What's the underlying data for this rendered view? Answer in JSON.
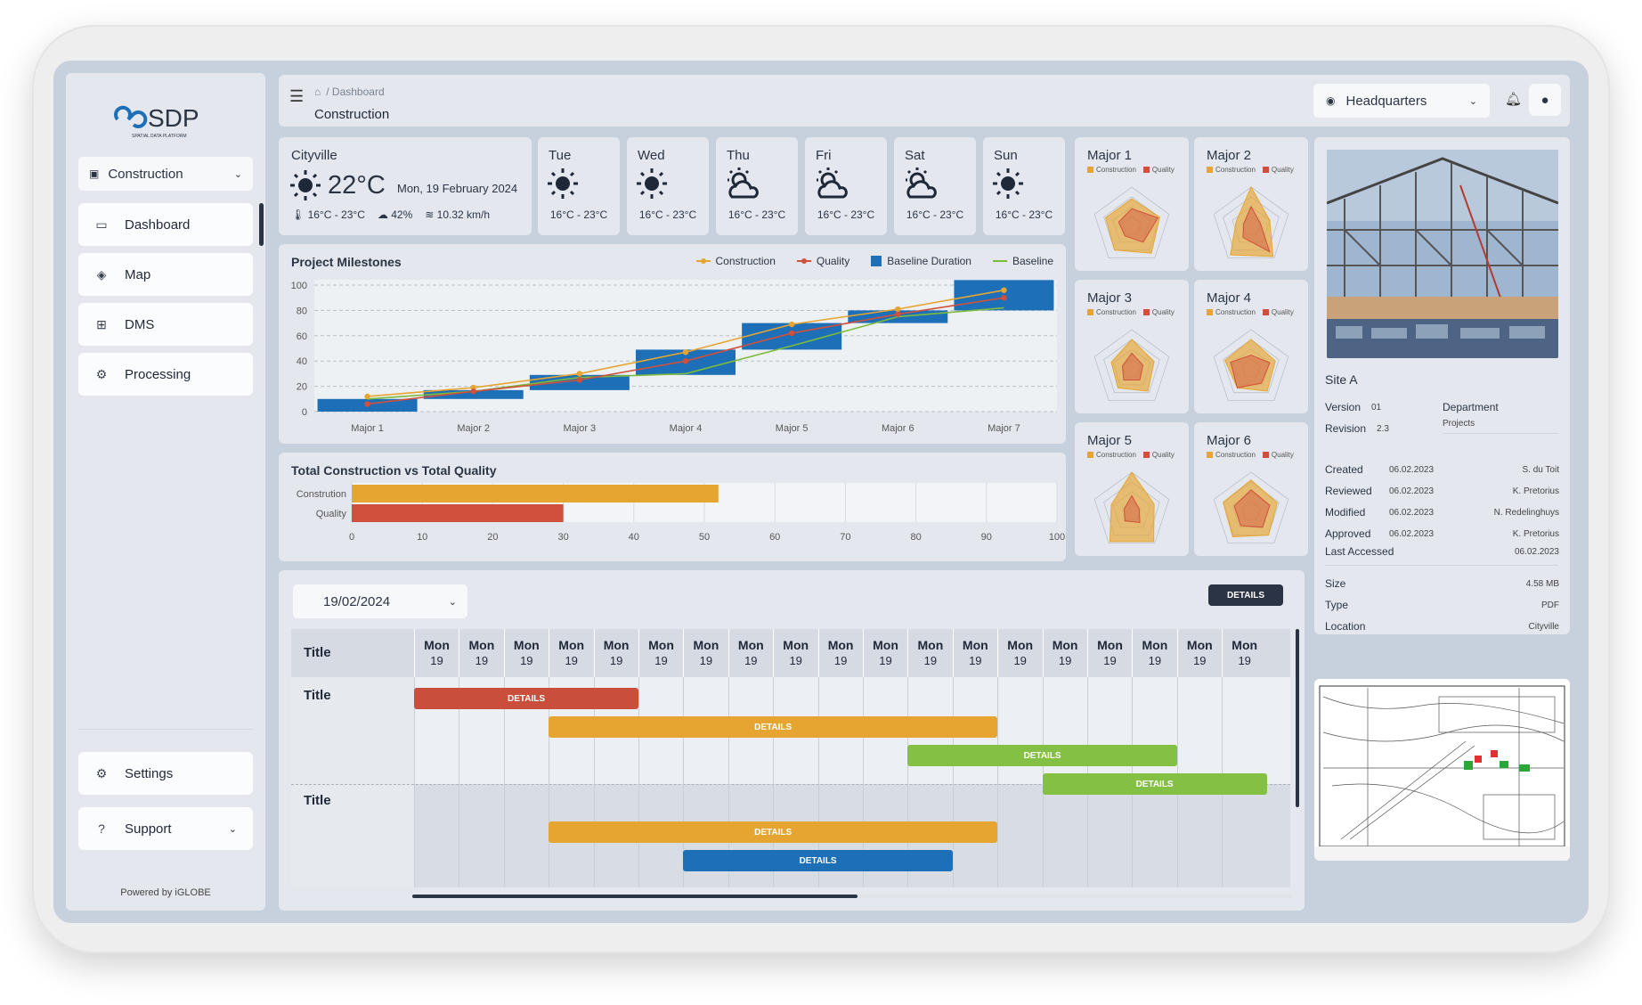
{
  "app": {
    "name": "SDP",
    "tagline": "SPATIAL DATA PLATFORM",
    "powered_by": "Powered by iGLOBE"
  },
  "sidebar": {
    "project_select": "Construction",
    "items": [
      {
        "label": "Dashboard",
        "active": true,
        "icon": "monitor-icon"
      },
      {
        "label": "Map",
        "icon": "map-icon"
      },
      {
        "label": "DMS",
        "icon": "sitemap-icon"
      },
      {
        "label": "Processing",
        "icon": "gear-icon"
      }
    ],
    "settings": "Settings",
    "support": "Support"
  },
  "header": {
    "breadcrumb": "/ Dashboard",
    "page_title": "Construction",
    "location": "Headquarters"
  },
  "weather": {
    "today": {
      "city": "Cityville",
      "temp": "22°C",
      "date": "Mon, 19 February 2024",
      "range": "16°C - 23°C",
      "humidity": "42%",
      "wind": "10.32 km/h",
      "icon": "sun-icon"
    },
    "days": [
      {
        "day": "Tue",
        "range": "16°C - 23°C",
        "icon": "sun-icon"
      },
      {
        "day": "Wed",
        "range": "16°C - 23°C",
        "icon": "sun-icon"
      },
      {
        "day": "Thu",
        "range": "16°C - 23°C",
        "icon": "cloud-sun-icon"
      },
      {
        "day": "Fri",
        "range": "16°C - 23°C",
        "icon": "cloud-sun-icon"
      },
      {
        "day": "Sat",
        "range": "16°C - 23°C",
        "icon": "cloud-sun-icon"
      },
      {
        "day": "Sun",
        "range": "16°C - 23°C",
        "icon": "sun-icon"
      }
    ]
  },
  "chart_data": [
    {
      "type": "bar",
      "title": "Project Milestones",
      "categories": [
        "Major 1",
        "Major 2",
        "Major 3",
        "Major 4",
        "Major 5",
        "Major 6",
        "Major 7"
      ],
      "ylim": [
        0,
        100
      ],
      "yticks": [
        0,
        20,
        40,
        60,
        80,
        100
      ],
      "series": [
        {
          "name": "Construction",
          "type": "line",
          "color": "#e6a531",
          "values": [
            12,
            19,
            30,
            47,
            69,
            81,
            96
          ]
        },
        {
          "name": "Quality",
          "type": "line",
          "color": "#d0503b",
          "values": [
            6,
            16,
            25,
            40,
            62,
            77,
            90
          ]
        },
        {
          "name": "Baseline Duration",
          "type": "floating-bar",
          "color": "#1d6fb8",
          "ranges": [
            [
              0,
              10
            ],
            [
              10,
              17
            ],
            [
              17,
              29
            ],
            [
              29,
              49
            ],
            [
              49,
              70
            ],
            [
              70,
              80
            ],
            [
              80,
              104
            ]
          ]
        },
        {
          "name": "Baseline",
          "type": "line",
          "color": "#7dbb3a",
          "values": [
            10,
            16,
            27,
            30,
            52,
            75,
            82
          ]
        }
      ]
    },
    {
      "type": "bar",
      "orientation": "horizontal",
      "title": "Total Construction vs Total Quality",
      "categories": [
        "Constrution",
        "Quality"
      ],
      "values": [
        52,
        30
      ],
      "colors": [
        "#e6a531",
        "#d0503b"
      ],
      "xlim": [
        0,
        100
      ],
      "xticks": [
        0,
        10,
        20,
        30,
        40,
        50,
        60,
        70,
        80,
        90,
        100
      ]
    },
    {
      "type": "radar",
      "title": "Major 1",
      "series": [
        {
          "name": "Construction",
          "values": [
            0.7,
            0.75,
            0.85,
            0.75,
            0.7
          ]
        },
        {
          "name": "Quality",
          "values": [
            0.45,
            0.7,
            0.5,
            0.3,
            0.35
          ]
        }
      ]
    },
    {
      "type": "radar",
      "title": "Major 2",
      "series": [
        {
          "name": "Construction",
          "values": [
            1.0,
            0.5,
            0.95,
            0.9,
            0.4
          ]
        },
        {
          "name": "Quality",
          "values": [
            0.5,
            0.25,
            0.8,
            0.35,
            0.2
          ]
        }
      ]
    },
    {
      "type": "radar",
      "title": "Major 3",
      "series": [
        {
          "name": "Construction",
          "values": [
            0.75,
            0.6,
            0.7,
            0.6,
            0.55
          ]
        },
        {
          "name": "Quality",
          "values": [
            0.4,
            0.3,
            0.35,
            0.35,
            0.25
          ]
        }
      ]
    },
    {
      "type": "radar",
      "title": "Major 4",
      "series": [
        {
          "name": "Construction",
          "values": [
            0.75,
            0.65,
            0.7,
            0.6,
            0.7
          ]
        },
        {
          "name": "Quality",
          "values": [
            0.35,
            0.5,
            0.45,
            0.6,
            0.55
          ]
        }
      ]
    },
    {
      "type": "radar",
      "title": "Major 5",
      "series": [
        {
          "name": "Construction",
          "values": [
            1.0,
            0.6,
            0.95,
            0.95,
            0.55
          ]
        },
        {
          "name": "Quality",
          "values": [
            0.4,
            0.2,
            0.35,
            0.3,
            0.2
          ]
        }
      ]
    },
    {
      "type": "radar",
      "title": "Major 6",
      "series": [
        {
          "name": "Construction",
          "values": [
            0.8,
            0.7,
            0.75,
            0.8,
            0.75
          ]
        },
        {
          "name": "Quality",
          "values": [
            0.55,
            0.5,
            0.5,
            0.45,
            0.45
          ]
        }
      ]
    }
  ],
  "radar_legend": {
    "a": "Construction",
    "b": "Quality"
  },
  "site": {
    "name": "Site A",
    "version_label": "Version",
    "version": "01",
    "revision_label": "Revision",
    "revision": "2.3",
    "department_label": "Department",
    "department": "Projects",
    "history": [
      {
        "label": "Created",
        "date": "06.02.2023",
        "by": "S. du Toit"
      },
      {
        "label": "Reviewed",
        "date": "06.02.2023",
        "by": "K. Pretorius"
      },
      {
        "label": "Modified",
        "date": "06.02.2023",
        "by": "N. Redelinghuys"
      },
      {
        "label": "Approved",
        "date": "06.02.2023",
        "by": "K. Pretorius"
      }
    ],
    "last_accessed_label": "Last Accessed",
    "last_accessed": "06.02.2023",
    "size_label": "Size",
    "size": "4.58 MB",
    "type_label": "Type",
    "type": "PDF",
    "location_label": "Location",
    "location": "Cityville"
  },
  "gantt": {
    "date": "19/02/2024",
    "details_button": "DETAILS",
    "title_header": "Title",
    "days": [
      "Mon",
      "Mon",
      "Mon",
      "Mon",
      "Mon",
      "Mon",
      "Mon",
      "Mon",
      "Mon",
      "Mon",
      "Mon",
      "Mon",
      "Mon",
      "Mon",
      "Mon",
      "Mon",
      "Mon",
      "Mon",
      "Mon"
    ],
    "dates": [
      "19",
      "19",
      "19",
      "19",
      "19",
      "19",
      "19",
      "19",
      "19",
      "19",
      "19",
      "19",
      "19",
      "19",
      "19",
      "19",
      "19",
      "19",
      "19"
    ],
    "rows": [
      {
        "title": "Title"
      },
      {
        "title": "Title"
      }
    ],
    "bars": [
      {
        "label": "DETAILS",
        "color": "#c94f3c"
      },
      {
        "label": "DETAILS",
        "color": "#e6a531"
      },
      {
        "label": "DETAILS",
        "color": "#84c043"
      },
      {
        "label": "DETAILS",
        "color": "#84c043"
      },
      {
        "label": "DETAILS",
        "color": "#e6a531"
      },
      {
        "label": "DETAILS",
        "color": "#1d6fb8"
      }
    ]
  }
}
